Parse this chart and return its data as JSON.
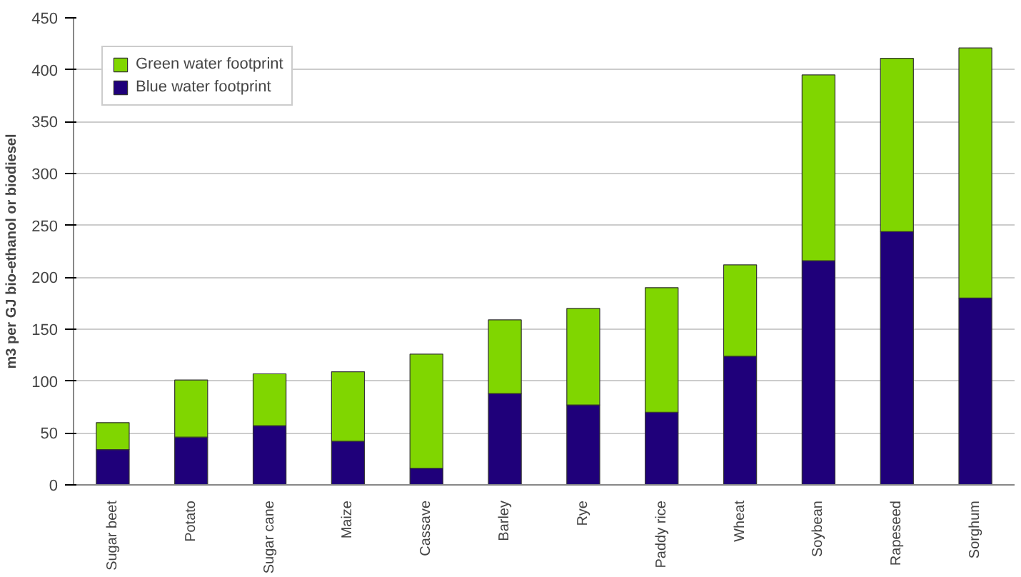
{
  "chart_data": {
    "type": "bar",
    "stacked": true,
    "ylabel": "m3 per GJ bio-ethanol or biodiesel",
    "categories": [
      "Sugar beet",
      "Potato",
      "Sugar cane",
      "Maize",
      "Cassave",
      "Barley",
      "Rye",
      "Paddy rice",
      "Wheat",
      "Soybean",
      "Rapeseed",
      "Sorghum"
    ],
    "series": [
      {
        "name": "Blue water footprint",
        "color": "#1f007a",
        "values": [
          34,
          46,
          57,
          42,
          16,
          88,
          77,
          70,
          124,
          216,
          244,
          180
        ]
      },
      {
        "name": "Green water footprint",
        "color": "#80d600",
        "values": [
          26,
          55,
          50,
          67,
          110,
          71,
          93,
          120,
          88,
          179,
          167,
          241
        ]
      }
    ],
    "ylim": [
      0,
      450
    ],
    "yticks": [
      0,
      50,
      100,
      150,
      200,
      250,
      300,
      350,
      400,
      450
    ],
    "grid": "y",
    "legend": "top left"
  }
}
